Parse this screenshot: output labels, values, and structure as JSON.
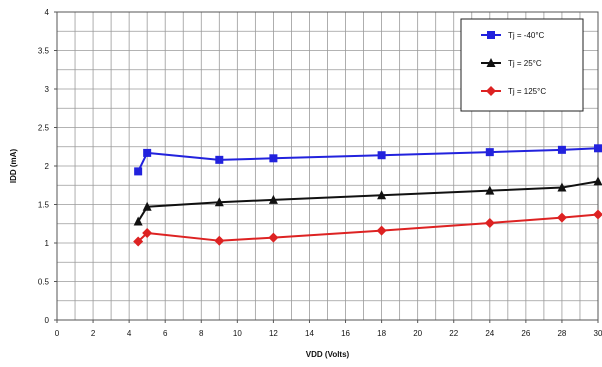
{
  "chart_data": {
    "type": "line",
    "title": "",
    "xlabel": "VDD (Volts)",
    "ylabel": "IDD (mA)",
    "xlim": [
      0,
      30
    ],
    "ylim": [
      0,
      4
    ],
    "x_ticks": [
      "0",
      "2",
      "4",
      "6",
      "8",
      "10",
      "12",
      "14",
      "16",
      "18",
      "20",
      "22",
      "24",
      "26",
      "28",
      "30"
    ],
    "y_ticks": [
      "0",
      "0.5",
      "1",
      "1.5",
      "2",
      "2.5",
      "3",
      "3.5",
      "4"
    ],
    "grid": true,
    "x_minor_step": 1,
    "y_minor_step": 0.25,
    "legend_position": "top-right",
    "series": [
      {
        "name": "Tj = -40°C",
        "color": "#2222dd",
        "marker": "square",
        "x": [
          4.5,
          5,
          9,
          12,
          18,
          24,
          28,
          30
        ],
        "y": [
          1.93,
          2.17,
          2.08,
          2.1,
          2.14,
          2.18,
          2.21,
          2.23
        ]
      },
      {
        "name": "Tj = 25°C",
        "color": "#111111",
        "marker": "triangle",
        "x": [
          4.5,
          5,
          9,
          12,
          18,
          24,
          28,
          30
        ],
        "y": [
          1.28,
          1.47,
          1.53,
          1.56,
          1.62,
          1.68,
          1.72,
          1.8
        ]
      },
      {
        "name": "Tj = 125°C",
        "color": "#dd2222",
        "marker": "diamond",
        "x": [
          4.5,
          5,
          9,
          12,
          18,
          24,
          28,
          30
        ],
        "y": [
          1.02,
          1.13,
          1.03,
          1.07,
          1.16,
          1.26,
          1.33,
          1.37
        ]
      }
    ]
  }
}
